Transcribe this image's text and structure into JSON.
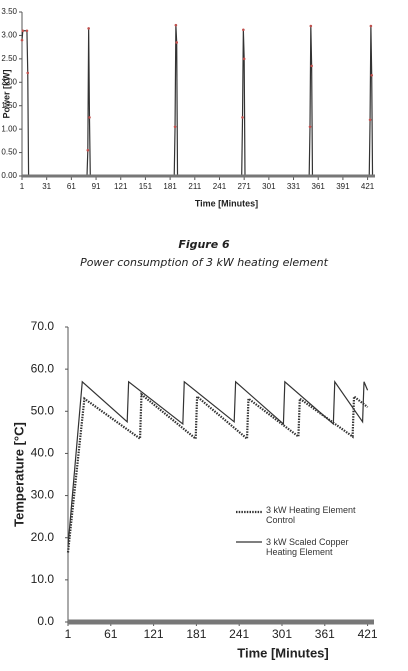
{
  "chart_data": [
    {
      "type": "line",
      "y_label": "Power [kW]",
      "x_label": "Time [Minutes]",
      "xlim": [
        1,
        430
      ],
      "xticks": [
        1,
        31,
        61,
        91,
        121,
        151,
        181,
        211,
        241,
        271,
        301,
        331,
        361,
        391,
        421
      ],
      "ylim": [
        0,
        3.5
      ],
      "yticks": [
        {
          "value": 0,
          "label": "0.00"
        },
        {
          "value": 0.5,
          "label": "0.50"
        },
        {
          "value": 1,
          "label": "1.00"
        },
        {
          "value": 1.5,
          "label": "1.50"
        },
        {
          "value": 2,
          "label": "2.00"
        },
        {
          "value": 2.5,
          "label": "2.50"
        },
        {
          "value": 3,
          "label": "3.00"
        },
        {
          "value": 3.5,
          "label": "3.50"
        }
      ],
      "grid": false,
      "marker_color": "#c0504d",
      "series": [
        {
          "color": "#333333",
          "line_style": "solid",
          "markers": true,
          "x": [
            1,
            2,
            7,
            8,
            9,
            80,
            81,
            82,
            83,
            84,
            186,
            187,
            188,
            189,
            190,
            268,
            269,
            270,
            271,
            272,
            350,
            351,
            352,
            353,
            354,
            423,
            424,
            425,
            426,
            427
          ],
          "values": [
            2.9,
            3.1,
            3.1,
            2.2,
            0,
            0,
            0.55,
            3.15,
            1.25,
            0,
            0,
            1.05,
            3.22,
            2.85,
            0,
            0,
            1.25,
            3.12,
            2.5,
            0,
            0,
            1.05,
            3.2,
            2.35,
            0,
            0,
            1.2,
            3.2,
            2.15,
            0
          ]
        }
      ]
    },
    {
      "type": "line",
      "y_label": "Temperature [°C]",
      "x_label": "Time [Minutes]",
      "xlim": [
        1,
        430
      ],
      "xticks": [
        1,
        61,
        121,
        181,
        241,
        301,
        361,
        421
      ],
      "ylim": [
        0,
        70
      ],
      "yticks": [
        {
          "value": 0,
          "label": "0.0"
        },
        {
          "value": 10,
          "label": "10.0"
        },
        {
          "value": 20,
          "label": "20.0"
        },
        {
          "value": 30,
          "label": "30.0"
        },
        {
          "value": 40,
          "label": "40.0"
        },
        {
          "value": 50,
          "label": "50.0"
        },
        {
          "value": 60,
          "label": "60.0"
        },
        {
          "value": 70,
          "label": "70.0"
        }
      ],
      "grid": false,
      "series": [
        {
          "name": "3 kW Heating Element Control",
          "color": "#333333",
          "line_style": "dotted",
          "markers": false,
          "x": [
            1,
            24,
            102,
            104,
            180,
            182,
            252,
            254,
            324,
            326,
            400,
            402,
            421
          ],
          "values": [
            16.5,
            53,
            43.5,
            54,
            43.5,
            53.5,
            43.5,
            53,
            44,
            53,
            44,
            53.5,
            51
          ]
        },
        {
          "name": "3 kW Scaled Copper Heating Element",
          "color": "#333333",
          "line_style": "solid",
          "markers": false,
          "x": [
            1,
            21,
            84,
            86,
            162,
            164,
            234,
            236,
            303,
            305,
            373,
            375,
            414,
            416,
            421
          ],
          "values": [
            18,
            57,
            47.5,
            57,
            47,
            57,
            47.5,
            57,
            47,
            57,
            47,
            57,
            47.5,
            57,
            55
          ]
        }
      ]
    }
  ],
  "figure_caption": {
    "label": "Figure 6",
    "text": "Power consumption of 3 kW heating element"
  }
}
